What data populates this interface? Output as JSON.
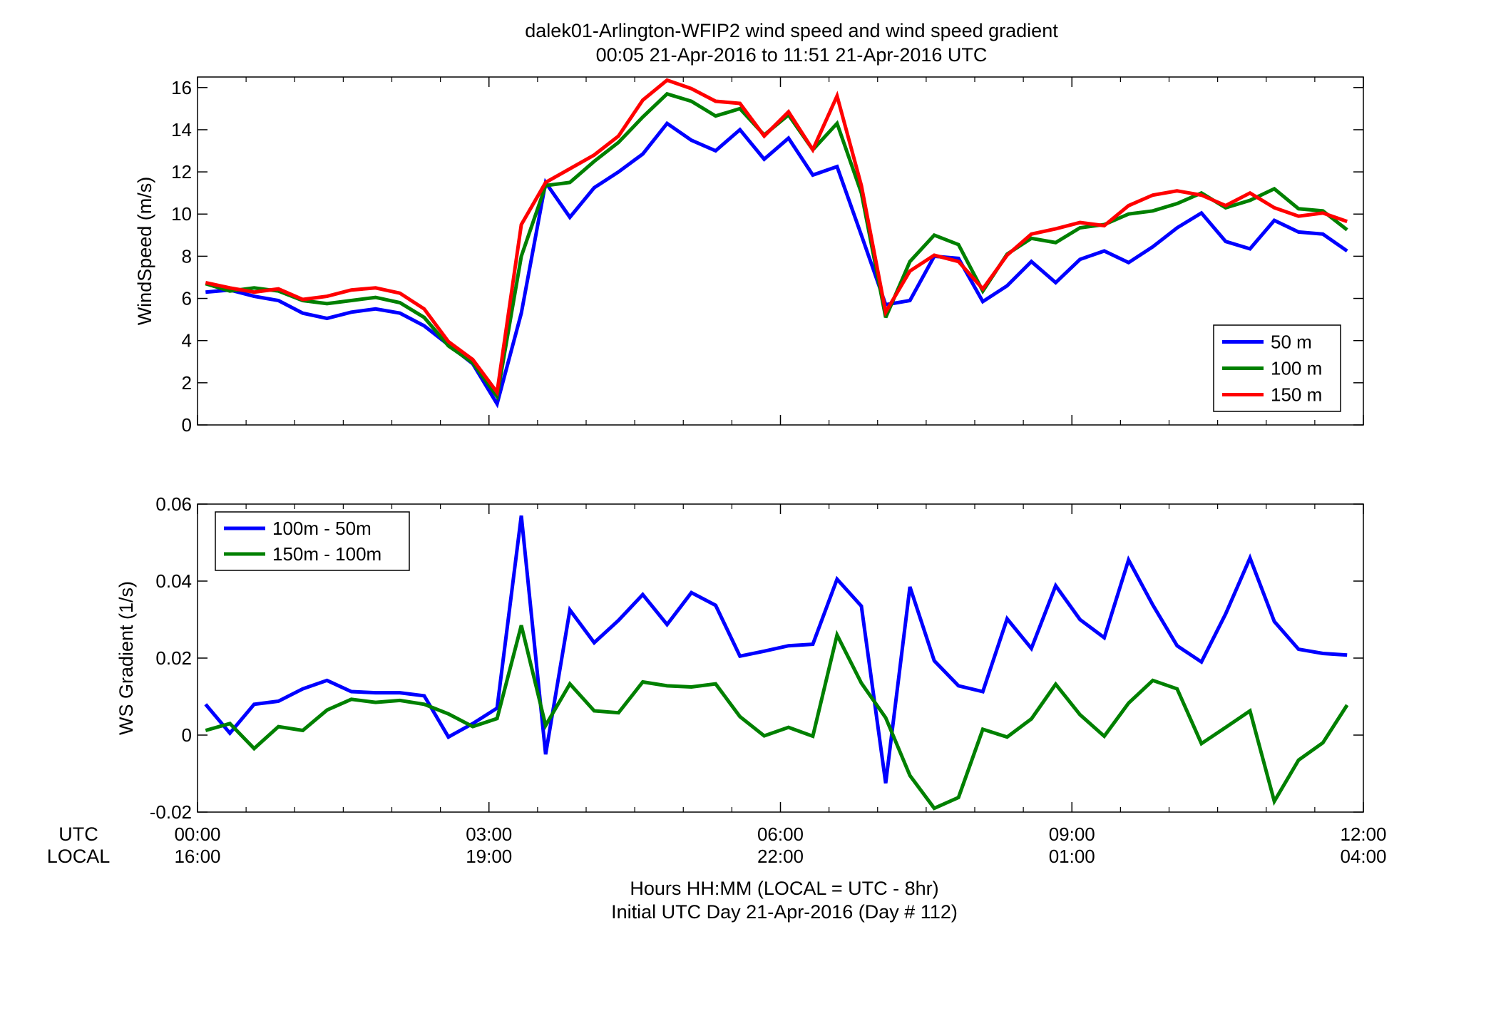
{
  "title": {
    "line1": "dalek01-Arlington-WFIP2  wind speed and wind speed gradient",
    "line2": "00:05 21-Apr-2016 to 11:51 21-Apr-2016  UTC"
  },
  "xaxis": {
    "row_label_utc": "UTC",
    "row_label_local": "LOCAL",
    "ticks_utc": [
      "00:00",
      "03:00",
      "06:00",
      "09:00",
      "12:00"
    ],
    "ticks_local": [
      "16:00",
      "19:00",
      "22:00",
      "01:00",
      "04:00"
    ],
    "label_line1": "Hours HH:MM  (LOCAL = UTC - 8hr)",
    "label_line2": "Initial UTC Day 21-Apr-2016 (Day # 112)"
  },
  "colors": {
    "blue": "#0000ff",
    "green": "#008000",
    "red": "#ff0000"
  },
  "chart_data": [
    {
      "type": "line",
      "ylabel": "WindSpeed (m/s)",
      "xlim": [
        0,
        12
      ],
      "ylim": [
        0,
        16.5
      ],
      "yticks": [
        "0",
        "2",
        "4",
        "6",
        "8",
        "10",
        "12",
        "14",
        "16"
      ],
      "ytick_values": [
        0,
        2,
        4,
        6,
        8,
        10,
        12,
        14,
        16
      ],
      "legend_position": "bottom-right",
      "x": [
        0.083,
        0.333,
        0.583,
        0.833,
        1.083,
        1.333,
        1.583,
        1.833,
        2.083,
        2.333,
        2.583,
        2.833,
        3.083,
        3.333,
        3.583,
        3.833,
        4.083,
        4.333,
        4.583,
        4.833,
        5.083,
        5.333,
        5.583,
        5.833,
        6.083,
        6.333,
        6.583,
        6.833,
        7.083,
        7.333,
        7.583,
        7.833,
        8.083,
        8.333,
        8.583,
        8.833,
        9.083,
        9.333,
        9.583,
        9.833,
        10.083,
        10.333,
        10.583,
        10.833,
        11.083,
        11.333,
        11.583,
        11.833
      ],
      "series": [
        {
          "name": "50 m",
          "color": "#0000ff",
          "values": [
            6.3,
            6.4,
            6.1,
            5.9,
            5.3,
            5.05,
            5.35,
            5.5,
            5.3,
            4.7,
            3.8,
            2.9,
            1.0,
            5.3,
            11.5,
            9.85,
            11.25,
            12.0,
            12.85,
            14.3,
            13.5,
            13.0,
            14.0,
            12.6,
            13.6,
            11.85,
            12.25,
            9.0,
            5.7,
            5.9,
            8.0,
            7.9,
            5.85,
            6.6,
            7.75,
            6.75,
            7.85,
            8.25,
            7.7,
            8.45,
            9.35,
            10.05,
            8.7,
            8.35,
            9.7,
            9.15,
            9.05,
            8.25
          ]
        },
        {
          "name": "100 m",
          "color": "#008000",
          "values": [
            6.7,
            6.35,
            6.5,
            6.35,
            5.9,
            5.75,
            5.9,
            6.05,
            5.8,
            5.1,
            3.75,
            2.95,
            1.35,
            8.0,
            11.35,
            11.5,
            12.5,
            13.4,
            14.6,
            15.7,
            15.35,
            14.65,
            15.0,
            13.75,
            14.7,
            13.05,
            14.3,
            11.0,
            5.1,
            7.75,
            9.0,
            8.55,
            6.35,
            8.1,
            8.85,
            8.65,
            9.35,
            9.5,
            10.0,
            10.15,
            10.5,
            11.0,
            10.3,
            10.65,
            11.2,
            10.25,
            10.15,
            9.25
          ]
        },
        {
          "name": "150 m",
          "color": "#ff0000",
          "values": [
            6.75,
            6.5,
            6.3,
            6.45,
            5.95,
            6.1,
            6.4,
            6.5,
            6.25,
            5.5,
            3.95,
            3.1,
            1.55,
            9.5,
            11.5,
            12.15,
            12.8,
            13.7,
            15.4,
            16.35,
            15.95,
            15.35,
            15.25,
            13.7,
            14.85,
            13.05,
            15.6,
            11.35,
            5.35,
            7.3,
            8.05,
            7.75,
            6.45,
            8.05,
            9.05,
            9.3,
            9.6,
            9.45,
            10.4,
            10.9,
            11.1,
            10.9,
            10.4,
            11.0,
            10.3,
            9.9,
            10.05,
            9.65
          ]
        }
      ]
    },
    {
      "type": "line",
      "ylabel": "WS Gradient (1/s)",
      "xlim": [
        0,
        12
      ],
      "ylim": [
        -0.02,
        0.06
      ],
      "yticks": [
        "-0.02",
        "0",
        "0.02",
        "0.04",
        "0.06"
      ],
      "ytick_values": [
        -0.02,
        0,
        0.02,
        0.04,
        0.06
      ],
      "legend_position": "top-left",
      "x": [
        0.083,
        0.333,
        0.583,
        0.833,
        1.083,
        1.333,
        1.583,
        1.833,
        2.083,
        2.333,
        2.583,
        2.833,
        3.083,
        3.333,
        3.583,
        3.833,
        4.083,
        4.333,
        4.583,
        4.833,
        5.083,
        5.333,
        5.583,
        5.833,
        6.083,
        6.333,
        6.583,
        6.833,
        7.083,
        7.333,
        7.583,
        7.833,
        8.083,
        8.333,
        8.583,
        8.833,
        9.083,
        9.333,
        9.583,
        9.833,
        10.083,
        10.333,
        10.583,
        10.833,
        11.083,
        11.333,
        11.583,
        11.833
      ],
      "series": [
        {
          "name": "100m - 50m",
          "color": "#0000ff",
          "values": [
            0.008,
            0.0005,
            0.008,
            0.0088,
            0.012,
            0.0142,
            0.0113,
            0.011,
            0.011,
            0.0102,
            -0.0005,
            0.003,
            0.007,
            0.057,
            -0.005,
            0.0325,
            0.024,
            0.0298,
            0.0365,
            0.0287,
            0.037,
            0.0337,
            0.0205,
            0.0218,
            0.0232,
            0.0236,
            0.0405,
            0.0335,
            -0.0125,
            0.0385,
            0.0193,
            0.0128,
            0.0113,
            0.0302,
            0.0225,
            0.0388,
            0.03,
            0.0253,
            0.0455,
            0.0338,
            0.0232,
            0.019,
            0.0315,
            0.046,
            0.0295,
            0.0223,
            0.0212,
            0.0208
          ]
        },
        {
          "name": "150m - 100m",
          "color": "#008000",
          "values": [
            0.0012,
            0.003,
            -0.0035,
            0.0022,
            0.0012,
            0.0065,
            0.0093,
            0.0085,
            0.009,
            0.008,
            0.0055,
            0.0022,
            0.0043,
            0.0285,
            0.0025,
            0.0133,
            0.0063,
            0.0058,
            0.0138,
            0.0128,
            0.0125,
            0.0133,
            0.0048,
            -0.0002,
            0.002,
            -0.0003,
            0.026,
            0.0135,
            0.0045,
            -0.0105,
            -0.019,
            -0.0162,
            0.0015,
            -0.0005,
            0.0042,
            0.0132,
            0.0053,
            -0.0003,
            0.0083,
            0.0142,
            0.012,
            -0.0022,
            0.002,
            0.0063,
            -0.0172,
            -0.0065,
            -0.002,
            0.0078
          ]
        }
      ]
    }
  ]
}
